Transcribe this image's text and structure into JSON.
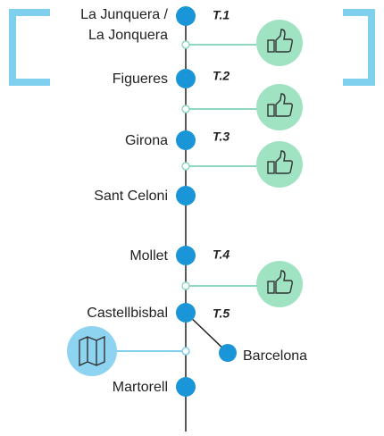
{
  "stations": [
    {
      "label": [
        "La Junquera /",
        "La Jonquera"
      ]
    },
    {
      "label": [
        "Figueres"
      ]
    },
    {
      "label": [
        "Girona"
      ]
    },
    {
      "label": [
        "Sant Celoni"
      ]
    },
    {
      "label": [
        "Mollet"
      ]
    },
    {
      "label": [
        "Castellbisbal"
      ]
    },
    {
      "label": [
        "Martorell"
      ]
    }
  ],
  "sections": [
    "T.1",
    "T.2",
    "T.3",
    "T.4",
    "T.5"
  ],
  "branch": {
    "label": "Barcelona"
  }
}
